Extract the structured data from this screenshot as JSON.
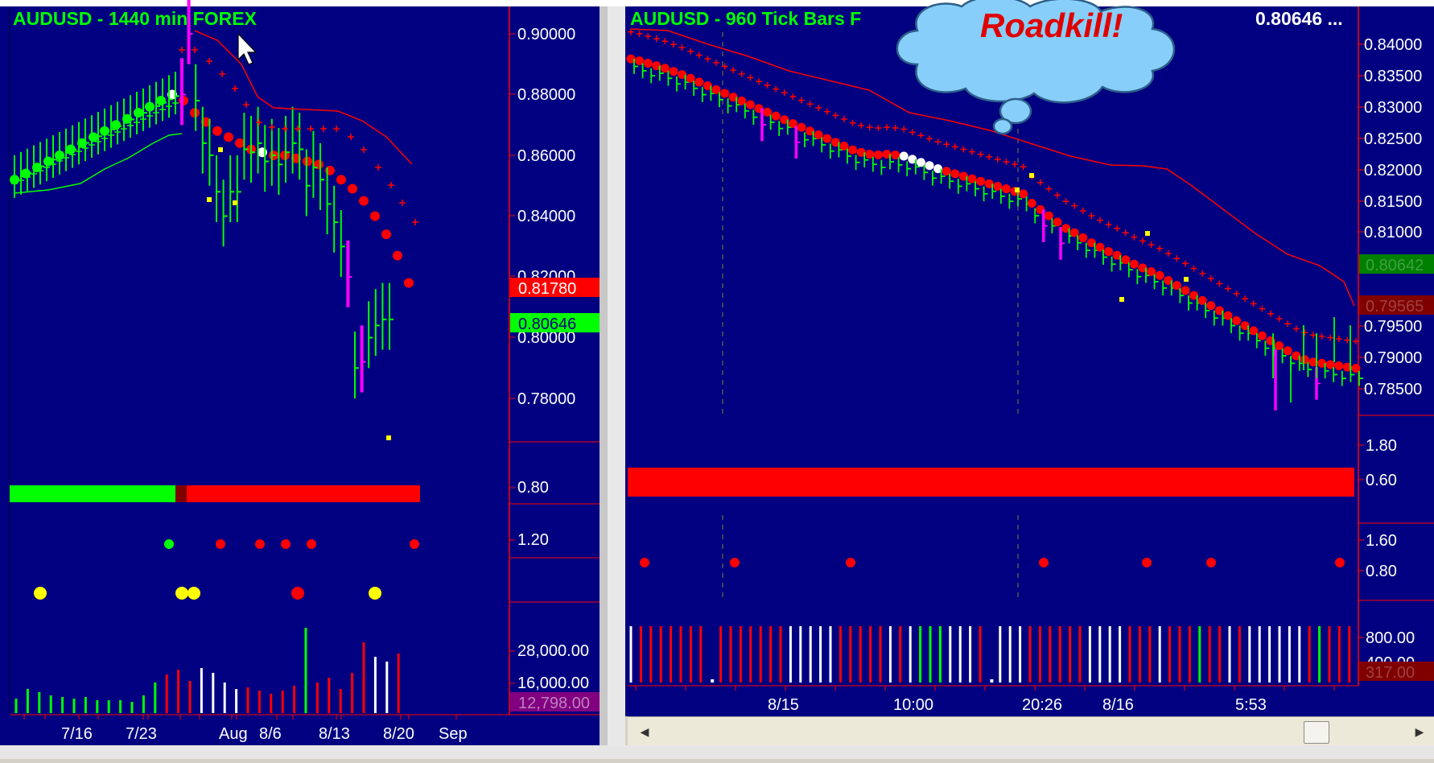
{
  "colors": {
    "bg": "#000080",
    "green": "#00ff00",
    "red": "#ff0000",
    "magenta": "#ff00ff",
    "yellow": "#ffff00",
    "white": "#ffffff",
    "axis": "#ff0000",
    "text": "#ffffff",
    "cloud": "#87cefa",
    "cloud_text": "#e00000"
  },
  "left": {
    "title": "AUDUSD - 1440 min  FOREX",
    "price_ticks": [
      "0.90000",
      "0.88000",
      "0.86000",
      "0.84000",
      "0.82000",
      "0.80000",
      "0.78000"
    ],
    "price_badge_red": "0.81780",
    "price_badge_green": "0.80646",
    "ind1_label": "0.80",
    "ind2_label": "1.20",
    "vol_ticks": [
      "28,000.00",
      "16,000.00"
    ],
    "vol_badge": "12,798.00",
    "date_labels": [
      "7/16",
      "7/23",
      "Aug",
      "8/6",
      "8/13",
      "8/20",
      "Sep"
    ]
  },
  "right": {
    "title": "AUDUSD - 960 Tick Bars  F",
    "last_price": "0.80646 ...",
    "price_ticks": [
      "0.84000",
      "0.83500",
      "0.83000",
      "0.82500",
      "0.82000",
      "0.81500",
      "0.81000",
      "0.79500",
      "0.79000",
      "0.78500"
    ],
    "price_badge_green": "0.80642",
    "price_badge_red": "0.79565",
    "ind1_ticks": [
      "1.80",
      "0.60"
    ],
    "ind2_ticks": [
      "1.60",
      "0.80"
    ],
    "vol_ticks": [
      "800.00",
      "400.00"
    ],
    "vol_badge": "317.00",
    "date_labels": [
      "8/15",
      "10:00",
      "20:26",
      "8/16",
      "5:53"
    ]
  },
  "callout": "Roadkill!",
  "chart_data": [
    {
      "type": "line",
      "title": "AUDUSD - 1440 min  FOREX",
      "x_labels": [
        "7/16",
        "7/23",
        "Aug",
        "8/6",
        "8/13",
        "8/20",
        "Sep"
      ],
      "ylim": [
        0.77,
        0.905
      ],
      "series": [
        {
          "values": [
            0.852,
            0.854,
            0.856,
            0.858,
            0.86,
            0.862,
            0.864,
            0.866,
            0.868,
            0.87,
            0.872,
            0.874,
            0.876,
            0.878,
            0.88,
            0.878,
            0.874,
            0.871,
            0.868,
            0.866,
            0.864,
            0.862,
            0.861,
            0.86,
            0.86,
            0.859,
            0.858,
            0.857,
            0.855,
            0.852,
            0.849,
            0.845,
            0.84,
            0.834,
            0.827,
            0.818
          ]
        },
        {
          "values": [
            0.88,
            0.9,
            0.878,
            0.864,
            0.86,
            0.848,
            0.84,
            0.848,
            0.848,
            0.862,
            0.861,
            0.864,
            0.858,
            0.86,
            0.857,
            0.861,
            0.864,
            0.862,
            0.85,
            0.856,
            0.852,
            0.844,
            0.838,
            0.83,
            0.82,
            0.79,
            0.792,
            0.8,
            0.804,
            0.806,
            0.806
          ]
        }
      ]
    },
    {
      "type": "line",
      "title": "AUDUSD - 960 Tick Bars",
      "x_labels": [
        "8/15",
        "10:00",
        "20:26",
        "8/16",
        "5:53"
      ],
      "ylim": [
        0.783,
        0.843
      ],
      "series": [
        {
          "values": [
            0.8405,
            0.8402,
            0.8398,
            0.8394,
            0.839,
            0.8385,
            0.838,
            0.8374,
            0.8368,
            0.8362,
            0.8356,
            0.835,
            0.8344,
            0.8338,
            0.8332,
            0.8326,
            0.832,
            0.8314,
            0.8308,
            0.8302,
            0.8296,
            0.829,
            0.8284,
            0.8278,
            0.8272,
            0.8266,
            0.826,
            0.8256,
            0.8253,
            0.8252,
            0.8253,
            0.8252,
            0.825,
            0.8245,
            0.824,
            0.8235,
            0.823,
            0.8226,
            0.8222,
            0.8218,
            0.8214,
            0.821,
            0.8206,
            0.8202,
            0.8198,
            0.8194,
            0.819,
            0.8175,
            0.8165,
            0.8155,
            0.8145,
            0.8135,
            0.8128,
            0.812,
            0.8112,
            0.8105,
            0.8098,
            0.8092,
            0.8085,
            0.8078,
            0.8072,
            0.8066,
            0.806,
            0.8052,
            0.8044,
            0.8036,
            0.8028,
            0.802,
            0.8012,
            0.8004,
            0.7996,
            0.7988,
            0.798,
            0.7972,
            0.7964,
            0.7956,
            0.7948,
            0.794,
            0.7932,
            0.7926,
            0.7922,
            0.792,
            0.7918,
            0.7916,
            0.7914,
            0.7912
          ]
        }
      ]
    }
  ]
}
